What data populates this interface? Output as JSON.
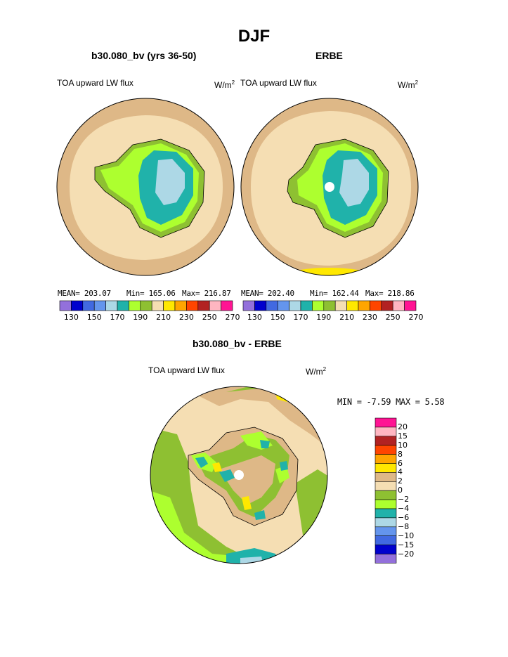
{
  "page_title": "DJF",
  "palette": {
    "abs": [
      "#9370DB",
      "#0000CD",
      "#4169E1",
      "#6495ED",
      "#ADD8E6",
      "#20B2AA",
      "#ADFF2F",
      "#8EC032",
      "#F5DEB3",
      "#FFE800",
      "#FFA500",
      "#FF4500",
      "#B22222",
      "#FFB6C1",
      "#FF1493"
    ],
    "diff": [
      "#9370DB",
      "#0000CD",
      "#4169E1",
      "#6495ED",
      "#ADD8E6",
      "#20B2AA",
      "#ADFF2F",
      "#8EC032",
      "#F5DEB3",
      "#DEB887",
      "#FFE800",
      "#FFA500",
      "#FF4500",
      "#B22222",
      "#FFB6C1",
      "#FF1493"
    ]
  },
  "chart_data": [
    {
      "type": "heatmap",
      "title": "b30.080_bv (yrs 36-50)",
      "subtitle": "TOA upward LW flux",
      "units": "W/m",
      "units_sup": "2",
      "stats": {
        "mean": "MEAN= 203.07",
        "min": "Min= 165.06",
        "max": "Max= 216.87"
      },
      "colorbar_labels": [
        "130",
        "150",
        "170",
        "190",
        "210",
        "230",
        "250",
        "270"
      ]
    },
    {
      "type": "heatmap",
      "title": "ERBE",
      "subtitle": "TOA upward LW flux",
      "units": "W/m",
      "units_sup": "2",
      "stats": {
        "mean": "MEAN= 202.40",
        "min": "Min= 162.44",
        "max": "Max= 218.86"
      },
      "colorbar_labels": [
        "130",
        "150",
        "170",
        "190",
        "210",
        "230",
        "250",
        "270"
      ]
    },
    {
      "type": "heatmap",
      "title": "b30.080_bv - ERBE",
      "subtitle": "TOA upward LW flux",
      "units": "W/m",
      "units_sup": "2",
      "stats": {
        "minmax": "MIN =  -7.59 MAX =   5.58"
      },
      "colorbar_labels": [
        "20",
        "15",
        "10",
        "8",
        "6",
        "4",
        "2",
        "0",
        "−2",
        "−4",
        "−6",
        "−8",
        "−10",
        "−15",
        "−20"
      ]
    }
  ]
}
